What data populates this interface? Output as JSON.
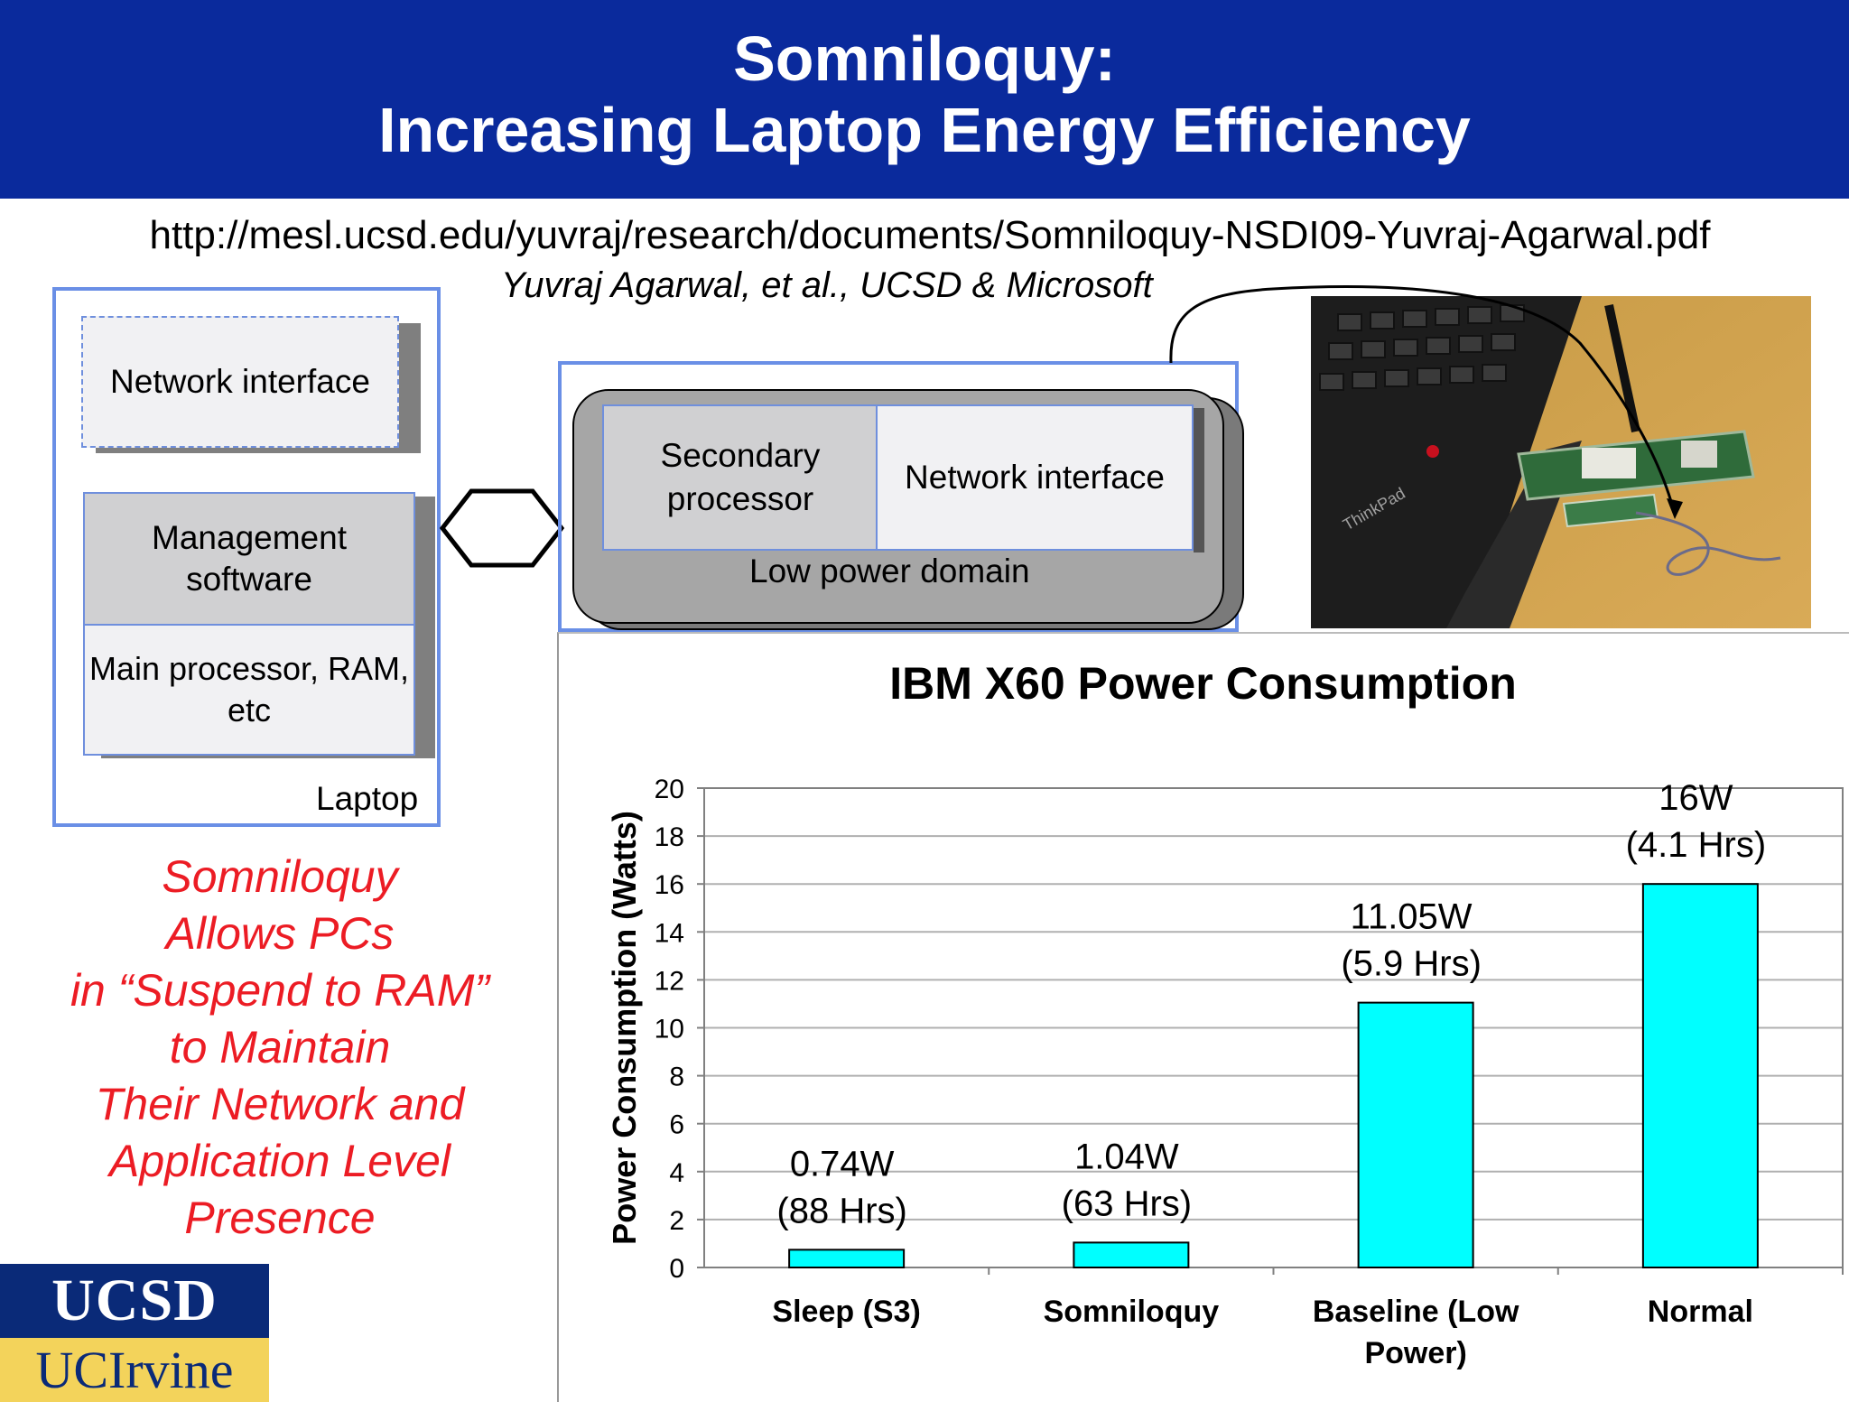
{
  "title": {
    "line1": "Somniloquy:",
    "line2": "Increasing Laptop Energy Efficiency"
  },
  "url": "http://mesl.ucsd.edu/yuvraj/research/documents/Somniloquy-NSDI09-Yuvraj-Agarwal.pdf",
  "authors": "Yuvraj Agarwal, et al., UCSD & Microsoft",
  "diagram": {
    "laptop_network_interface": "Network interface",
    "management_software": "Management software",
    "main_processor": "Main processor, RAM, etc",
    "laptop_label": "Laptop",
    "secondary_processor": "Secondary processor",
    "lpd_network_interface": "Network interface",
    "low_power_domain": "Low power domain"
  },
  "caption": [
    "Somniloquy",
    "Allows PCs",
    "in “Suspend to RAM”",
    "to Maintain",
    "Their Network and",
    "Application Level",
    "Presence"
  ],
  "logos": {
    "ucsd": "UCSD",
    "uci": "UCIrvine"
  },
  "colors": {
    "banner": "#0a2a9c",
    "caption": "#ec1c24",
    "bar": "#00ffff",
    "frame": "#6a8fe6"
  },
  "chart_data": {
    "type": "bar",
    "title": "IBM X60 Power Consumption",
    "xlabel": "",
    "ylabel": "Power Consumption (Watts)",
    "ylim": [
      0,
      20
    ],
    "yticks": [
      0,
      2,
      4,
      6,
      8,
      10,
      12,
      14,
      16,
      18,
      20
    ],
    "grid": true,
    "categories": [
      [
        "Sleep (S3)"
      ],
      [
        "Somniloquy"
      ],
      [
        "Baseline (Low",
        "Power)"
      ],
      [
        "Normal"
      ]
    ],
    "values": [
      0.74,
      1.04,
      11.05,
      16
    ],
    "data_labels": [
      [
        "0.74W",
        "(88 Hrs)"
      ],
      [
        "1.04W",
        "(63 Hrs)"
      ],
      [
        "11.05W",
        "(5.9 Hrs)"
      ],
      [
        "16W",
        "(4.1 Hrs)"
      ]
    ]
  }
}
